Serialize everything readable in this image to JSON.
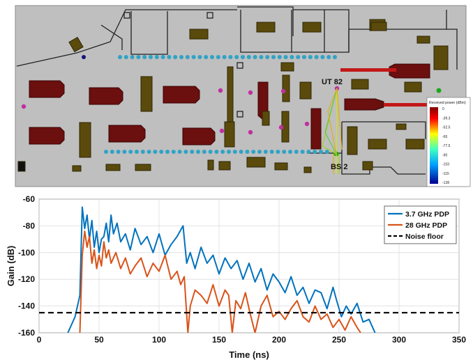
{
  "floorplan": {
    "ut_label": "UT 82",
    "bs_label": "BS 2",
    "colorbar": {
      "title": "Received power (dBm)",
      "ticks": [
        "0",
        "-39.3",
        "-52.5",
        "-65",
        "-77.5",
        "-90",
        "-103",
        "-115",
        "-128"
      ]
    },
    "colors": {
      "background": "#bfbfbf",
      "machinery": "#6b0f0f",
      "crates": "#5a4a0c",
      "mounted_points": "#2fa3c6",
      "measurement_points": "#c0309f",
      "rays": [
        "#d4e01e",
        "#9ad52a",
        "#e0b020",
        "#66c84a"
      ]
    }
  },
  "chart_data": {
    "type": "line",
    "title": "",
    "xlabel": "Time (ns)",
    "ylabel": "Gain (dB)",
    "xlim": [
      0,
      350
    ],
    "ylim": [
      -160,
      -60
    ],
    "xticks": [
      0,
      50,
      100,
      150,
      200,
      250,
      300,
      350
    ],
    "yticks": [
      -60,
      -80,
      -100,
      -120,
      -140,
      -160
    ],
    "grid": true,
    "legend_position": "top-right",
    "series": [
      {
        "name": "3.7 GHz PDP",
        "color": "#0072bd",
        "x": [
          24,
          30,
          34,
          36,
          38,
          40,
          42,
          44,
          46,
          48,
          50,
          52,
          54,
          56,
          58,
          60,
          62,
          65,
          68,
          72,
          76,
          80,
          85,
          90,
          95,
          100,
          105,
          110,
          115,
          120,
          123,
          126,
          130,
          135,
          140,
          145,
          150,
          155,
          160,
          165,
          170,
          175,
          180,
          185,
          190,
          195,
          200,
          205,
          210,
          215,
          220,
          225,
          230,
          235,
          240,
          245,
          248,
          252,
          256,
          260,
          265,
          270,
          275,
          280
        ],
        "y": [
          -160,
          -148,
          -132,
          -66,
          -82,
          -72,
          -90,
          -76,
          -96,
          -84,
          -100,
          -90,
          -88,
          -78,
          -92,
          -72,
          -86,
          -78,
          -92,
          -86,
          -98,
          -82,
          -94,
          -88,
          -100,
          -86,
          -102,
          -94,
          -88,
          -80,
          -108,
          -100,
          -112,
          -96,
          -108,
          -102,
          -116,
          -104,
          -112,
          -106,
          -120,
          -108,
          -122,
          -112,
          -128,
          -116,
          -122,
          -130,
          -118,
          -132,
          -126,
          -138,
          -128,
          -130,
          -142,
          -126,
          -136,
          -148,
          -140,
          -146,
          -138,
          -152,
          -150,
          -160
        ]
      },
      {
        "name": "28 GHz PDP",
        "color": "#d95319",
        "x": [
          34,
          36,
          38,
          40,
          42,
          44,
          46,
          48,
          50,
          52,
          54,
          56,
          58,
          60,
          64,
          68,
          72,
          76,
          80,
          85,
          90,
          95,
          100,
          105,
          110,
          115,
          118,
          121,
          124,
          126,
          130,
          135,
          140,
          145,
          150,
          155,
          158,
          161,
          164,
          168,
          172,
          176,
          180,
          185,
          190,
          195,
          200,
          205,
          210,
          215,
          220,
          225,
          230,
          235,
          240,
          245,
          250,
          255,
          260,
          265,
          268
        ],
        "y": [
          -160,
          -102,
          -84,
          -96,
          -88,
          -108,
          -98,
          -112,
          -102,
          -110,
          -92,
          -104,
          -98,
          -108,
          -100,
          -112,
          -104,
          -116,
          -110,
          -104,
          -118,
          -108,
          -114,
          -102,
          -120,
          -114,
          -124,
          -118,
          -160,
          -140,
          -128,
          -132,
          -138,
          -124,
          -140,
          -128,
          -132,
          -160,
          -136,
          -142,
          -130,
          -146,
          -160,
          -140,
          -132,
          -148,
          -144,
          -150,
          -142,
          -136,
          -148,
          -152,
          -140,
          -150,
          -146,
          -156,
          -150,
          -158,
          -148,
          -156,
          -160
        ]
      },
      {
        "name": "Noise floor",
        "color": "#000000",
        "style": "dashed",
        "x": [
          0,
          350
        ],
        "y": [
          -145,
          -145
        ]
      }
    ]
  }
}
